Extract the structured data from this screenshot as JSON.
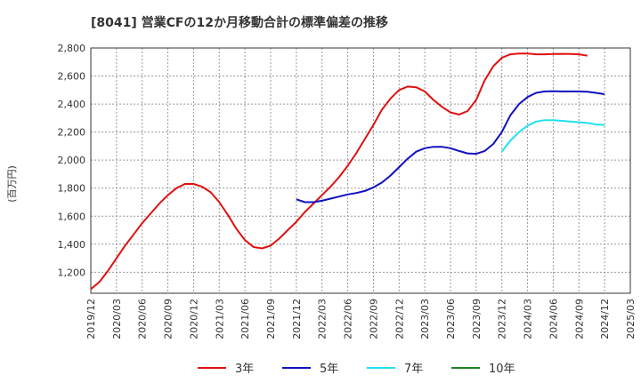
{
  "chart_data": {
    "type": "line",
    "title": "[8041]  営業CFの12か月移動合計の標準偏差の推移",
    "ylabel": "(百万円)",
    "xlabel": "",
    "ylim": [
      1050,
      2800
    ],
    "yticks": [
      1200,
      1400,
      1600,
      1800,
      2000,
      2200,
      2400,
      2600,
      2800
    ],
    "ytick_labels": [
      "1,200",
      "1,400",
      "1,600",
      "1,800",
      "2,000",
      "2,200",
      "2,400",
      "2,600",
      "2,800"
    ],
    "xlim": [
      "2019-12",
      "2025-03"
    ],
    "xticks": [
      "2019/12",
      "2020/03",
      "2020/06",
      "2020/09",
      "2020/12",
      "2021/03",
      "2021/06",
      "2021/09",
      "2021/12",
      "2022/03",
      "2022/06",
      "2022/09",
      "2022/12",
      "2023/03",
      "2023/06",
      "2023/09",
      "2023/12",
      "2024/03",
      "2024/06",
      "2024/09",
      "2024/12",
      "2025/03"
    ],
    "grid": true,
    "legend_position": "bottom",
    "series": [
      {
        "name": "3年",
        "color": "#e01010",
        "points": [
          [
            "2019-12",
            1080
          ],
          [
            "2020-01",
            1130
          ],
          [
            "2020-02",
            1210
          ],
          [
            "2020-03",
            1300
          ],
          [
            "2020-04",
            1390
          ],
          [
            "2020-05",
            1470
          ],
          [
            "2020-06",
            1550
          ],
          [
            "2020-07",
            1620
          ],
          [
            "2020-08",
            1690
          ],
          [
            "2020-09",
            1750
          ],
          [
            "2020-10",
            1800
          ],
          [
            "2020-11",
            1830
          ],
          [
            "2020-12",
            1830
          ],
          [
            "2021-01",
            1810
          ],
          [
            "2021-02",
            1770
          ],
          [
            "2021-03",
            1700
          ],
          [
            "2021-04",
            1610
          ],
          [
            "2021-05",
            1510
          ],
          [
            "2021-06",
            1430
          ],
          [
            "2021-07",
            1380
          ],
          [
            "2021-08",
            1370
          ],
          [
            "2021-09",
            1390
          ],
          [
            "2021-10",
            1440
          ],
          [
            "2021-11",
            1500
          ],
          [
            "2021-12",
            1560
          ],
          [
            "2022-01",
            1630
          ],
          [
            "2022-02",
            1690
          ],
          [
            "2022-03",
            1750
          ],
          [
            "2022-04",
            1810
          ],
          [
            "2022-05",
            1880
          ],
          [
            "2022-06",
            1960
          ],
          [
            "2022-07",
            2050
          ],
          [
            "2022-08",
            2150
          ],
          [
            "2022-09",
            2250
          ],
          [
            "2022-10",
            2360
          ],
          [
            "2022-11",
            2440
          ],
          [
            "2022-12",
            2500
          ],
          [
            "2023-01",
            2525
          ],
          [
            "2023-02",
            2520
          ],
          [
            "2023-03",
            2490
          ],
          [
            "2023-04",
            2430
          ],
          [
            "2023-05",
            2380
          ],
          [
            "2023-06",
            2340
          ],
          [
            "2023-07",
            2325
          ],
          [
            "2023-08",
            2350
          ],
          [
            "2023-09",
            2430
          ],
          [
            "2023-10",
            2570
          ],
          [
            "2023-11",
            2670
          ],
          [
            "2023-12",
            2730
          ],
          [
            "2024-01",
            2755
          ],
          [
            "2024-02",
            2760
          ],
          [
            "2024-03",
            2760
          ],
          [
            "2024-04",
            2755
          ],
          [
            "2024-05",
            2755
          ],
          [
            "2024-06",
            2757
          ],
          [
            "2024-07",
            2758
          ],
          [
            "2024-08",
            2757
          ],
          [
            "2024-09",
            2755
          ],
          [
            "2024-10",
            2745
          ]
        ]
      },
      {
        "name": "5年",
        "color": "#1010c0",
        "points": [
          [
            "2021-12",
            1720
          ],
          [
            "2022-01",
            1700
          ],
          [
            "2022-02",
            1700
          ],
          [
            "2022-03",
            1710
          ],
          [
            "2022-04",
            1725
          ],
          [
            "2022-05",
            1740
          ],
          [
            "2022-06",
            1755
          ],
          [
            "2022-07",
            1765
          ],
          [
            "2022-08",
            1780
          ],
          [
            "2022-09",
            1805
          ],
          [
            "2022-10",
            1840
          ],
          [
            "2022-11",
            1890
          ],
          [
            "2022-12",
            1950
          ],
          [
            "2023-01",
            2010
          ],
          [
            "2023-02",
            2060
          ],
          [
            "2023-03",
            2085
          ],
          [
            "2023-04",
            2095
          ],
          [
            "2023-05",
            2095
          ],
          [
            "2023-06",
            2085
          ],
          [
            "2023-07",
            2065
          ],
          [
            "2023-08",
            2048
          ],
          [
            "2023-09",
            2045
          ],
          [
            "2023-10",
            2065
          ],
          [
            "2023-11",
            2115
          ],
          [
            "2023-12",
            2200
          ],
          [
            "2024-01",
            2320
          ],
          [
            "2024-02",
            2400
          ],
          [
            "2024-03",
            2450
          ],
          [
            "2024-04",
            2480
          ],
          [
            "2024-05",
            2490
          ],
          [
            "2024-06",
            2492
          ],
          [
            "2024-07",
            2490
          ],
          [
            "2024-08",
            2490
          ],
          [
            "2024-09",
            2490
          ],
          [
            "2024-10",
            2488
          ],
          [
            "2024-11",
            2480
          ],
          [
            "2024-12",
            2470
          ]
        ]
      },
      {
        "name": "7年",
        "color": "#20e0f0",
        "points": [
          [
            "2023-12",
            2060
          ],
          [
            "2024-01",
            2140
          ],
          [
            "2024-02",
            2200
          ],
          [
            "2024-03",
            2245
          ],
          [
            "2024-04",
            2275
          ],
          [
            "2024-05",
            2285
          ],
          [
            "2024-06",
            2285
          ],
          [
            "2024-07",
            2280
          ],
          [
            "2024-08",
            2275
          ],
          [
            "2024-09",
            2270
          ],
          [
            "2024-10",
            2265
          ],
          [
            "2024-11",
            2255
          ],
          [
            "2024-12",
            2250
          ]
        ]
      },
      {
        "name": "10年",
        "color": "#208020",
        "points": []
      }
    ]
  }
}
